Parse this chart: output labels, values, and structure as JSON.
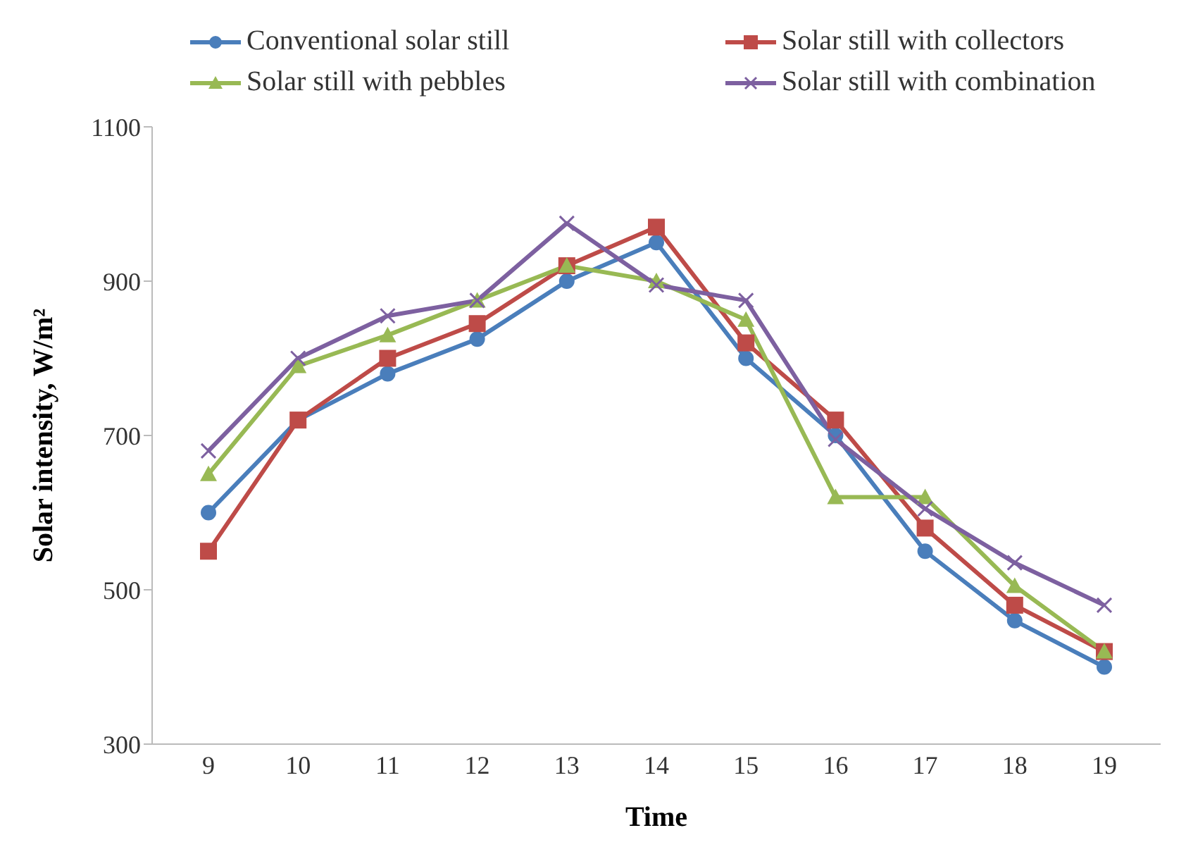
{
  "chart_data": {
    "type": "line",
    "xlabel": "Time",
    "ylabel": "Solar intensity, W/m²",
    "categories": [
      "9",
      "10",
      "11",
      "12",
      "13",
      "14",
      "15",
      "16",
      "17",
      "18",
      "19"
    ],
    "ylim": [
      300,
      1100
    ],
    "yticks": [
      300,
      500,
      700,
      900,
      1100
    ],
    "grid": false,
    "legend": "top",
    "line_style": "solid",
    "series": [
      {
        "name": "Conventional solar still",
        "color": "#4a7ebb",
        "marker": "circle",
        "values": [
          600,
          720,
          780,
          825,
          900,
          950,
          800,
          700,
          550,
          460,
          400
        ]
      },
      {
        "name": "Solar still with collectors",
        "color": "#be4b48",
        "marker": "square",
        "values": [
          550,
          720,
          800,
          845,
          920,
          970,
          820,
          720,
          580,
          480,
          420
        ]
      },
      {
        "name": "Solar still with pebbles",
        "color": "#98b954",
        "marker": "triangle",
        "values": [
          650,
          790,
          830,
          875,
          920,
          900,
          850,
          620,
          620,
          505,
          420
        ]
      },
      {
        "name": "Solar still with combination",
        "color": "#7d60a0",
        "marker": "cross",
        "values": [
          680,
          800,
          855,
          875,
          975,
          895,
          875,
          695,
          605,
          535,
          480
        ]
      }
    ]
  }
}
